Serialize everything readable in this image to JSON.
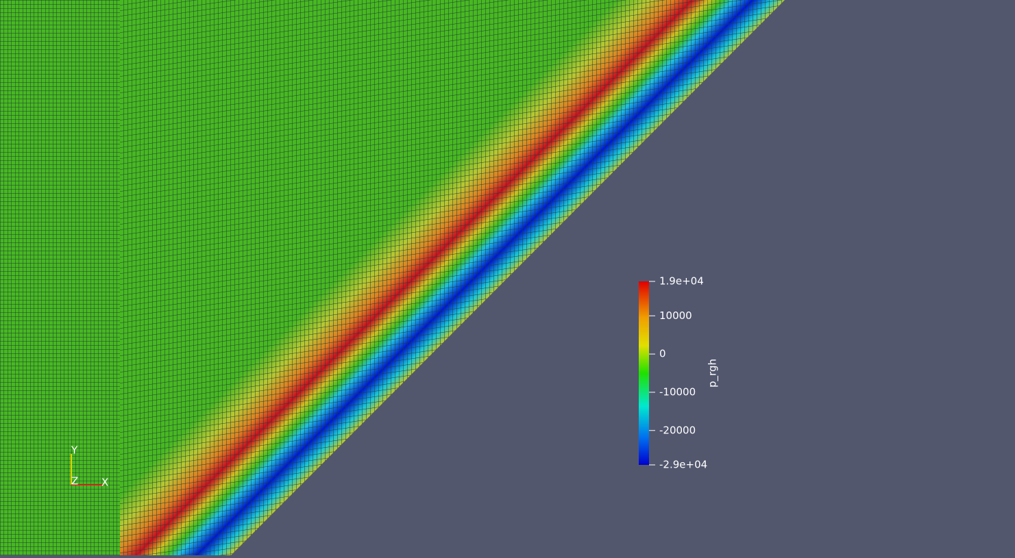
{
  "colorbar": {
    "title": "p_rgh",
    "range": [
      -29000,
      19000
    ],
    "ticks": [
      {
        "value": 19000,
        "label": "1.9e+04"
      },
      10000,
      0,
      -10000,
      -20000,
      {
        "value": -29000,
        "label": "-2.9e+04"
      }
    ]
  },
  "axes_triad": {
    "y": "Y",
    "z": "Z",
    "x": "X"
  }
}
